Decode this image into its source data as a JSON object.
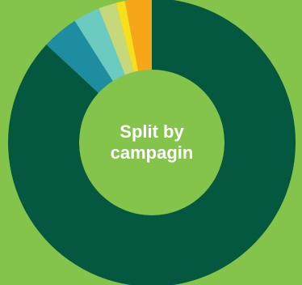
{
  "colors": {
    "background": "#84c44a",
    "inner_circle": "#84c44a",
    "center_text": "#ffffff"
  },
  "chart_data": {
    "type": "pie",
    "donut": true,
    "start_angle_deg": 0,
    "direction": "clockwise",
    "center_label_lines": [
      "Split by",
      "campagin"
    ],
    "slices": [
      {
        "value": 86.9,
        "color": "#03583f"
      },
      {
        "value": 4.1,
        "color": "#1f8da0"
      },
      {
        "value": 3.0,
        "color": "#6ccbc0"
      },
      {
        "value": 2.0,
        "color": "#c6d97a"
      },
      {
        "value": 1.0,
        "color": "#f8df1c"
      },
      {
        "value": 3.0,
        "color": "#f7a519"
      }
    ]
  }
}
